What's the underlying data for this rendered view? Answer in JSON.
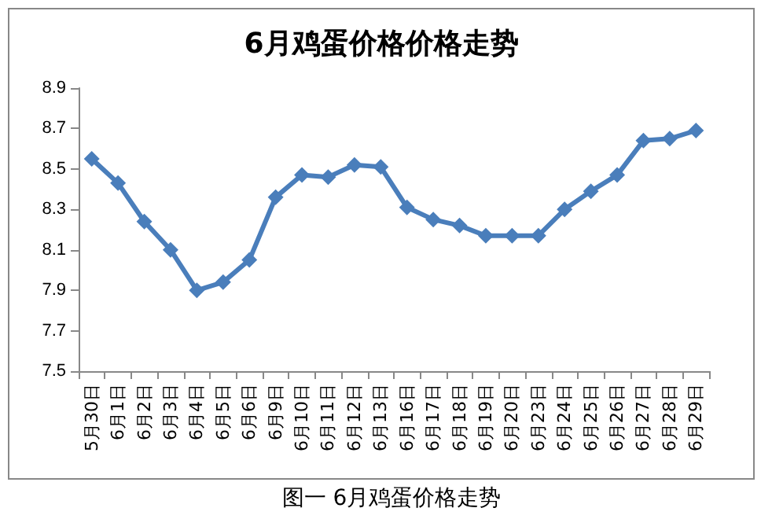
{
  "chart_data": {
    "type": "line",
    "title": "6月鸡蛋价格价格走势",
    "categories": [
      "5月30日",
      "6月1日",
      "6月2日",
      "6月3日",
      "6月4日",
      "6月5日",
      "6月6日",
      "6月9日",
      "6月10日",
      "6月11日",
      "6月12日",
      "6月13日",
      "6月16日",
      "6月17日",
      "6月18日",
      "6月19日",
      "6月20日",
      "6月23日",
      "6月24日",
      "6月25日",
      "6月26日",
      "6月27日",
      "6月28日",
      "6月29日"
    ],
    "series": [
      {
        "color": "#4a7ebb",
        "values": [
          8.55,
          8.43,
          8.24,
          8.1,
          7.9,
          7.94,
          8.05,
          8.36,
          8.47,
          8.46,
          8.52,
          8.51,
          8.31,
          8.25,
          8.22,
          8.17,
          8.17,
          8.17,
          8.3,
          8.39,
          8.47,
          8.64,
          8.65,
          8.69
        ]
      }
    ],
    "ylim": [
      7.5,
      8.9
    ],
    "yticks": [
      7.5,
      7.7,
      7.9,
      8.1,
      8.3,
      8.5,
      8.7,
      8.9
    ],
    "grid": false,
    "marker": "diamond",
    "line_style": "solid",
    "annotations": [
      "图一 6月鸡蛋价格走势"
    ]
  }
}
